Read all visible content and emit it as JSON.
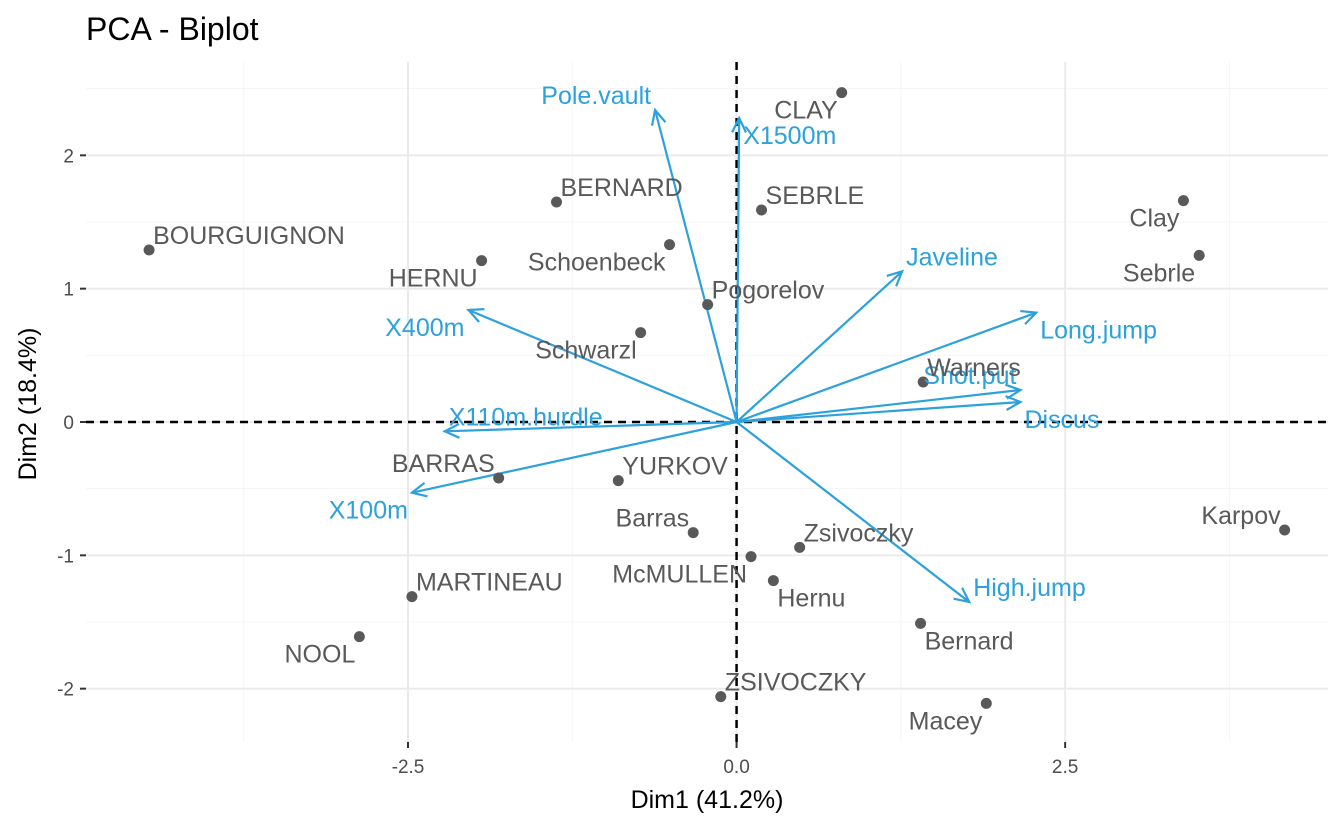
{
  "colors": {
    "individual": "#595959",
    "variable": "#2ca1db",
    "grid_major": "#ebebeb",
    "grid_minor": "#f5f5f5",
    "reference_line": "#000000"
  },
  "chart_data": {
    "type": "scatter",
    "subtype": "pca-biplot",
    "title": "PCA - Biplot",
    "xlabel": "Dim1 (41.2%)",
    "ylabel": "Dim2 (18.4%)",
    "xlim": [
      -4.95,
      4.5
    ],
    "ylim": [
      -2.4,
      2.7
    ],
    "x_ticks": [
      {
        "value": -2.5,
        "label": "-2.5"
      },
      {
        "value": 0.0,
        "label": "0.0"
      },
      {
        "value": 2.5,
        "label": "2.5"
      }
    ],
    "y_ticks": [
      {
        "value": -2,
        "label": "-2"
      },
      {
        "value": -1,
        "label": "-1"
      },
      {
        "value": 0,
        "label": "0"
      },
      {
        "value": 1,
        "label": "1"
      },
      {
        "value": 2,
        "label": "2"
      }
    ],
    "grid": true,
    "reference_lines": {
      "x": 0,
      "y": 0,
      "style": "dashed"
    },
    "individuals": [
      {
        "label": "BOURGUIGNON",
        "x": -4.47,
        "y": 1.29,
        "label_pos": "top-right"
      },
      {
        "label": "BERNARD",
        "x": -1.37,
        "y": 1.65,
        "label_pos": "top-right"
      },
      {
        "label": "CLAY",
        "x": 0.8,
        "y": 2.47,
        "label_pos": "bottom-left"
      },
      {
        "label": "SEBRLE",
        "x": 0.19,
        "y": 1.59,
        "label_pos": "top-right"
      },
      {
        "label": "Clay",
        "x": 3.4,
        "y": 1.66,
        "label_pos": "bottom-left"
      },
      {
        "label": "Sebrle",
        "x": 3.52,
        "y": 1.25,
        "label_pos": "bottom-left"
      },
      {
        "label": "HERNU",
        "x": -1.94,
        "y": 1.21,
        "label_pos": "bottom-left"
      },
      {
        "label": "Schoenbeck",
        "x": -0.51,
        "y": 1.33,
        "label_pos": "bottom-left"
      },
      {
        "label": "Pogorelov",
        "x": -0.22,
        "y": 0.88,
        "label_pos": "top-right"
      },
      {
        "label": "Schwarzl",
        "x": -0.73,
        "y": 0.67,
        "label_pos": "bottom-left"
      },
      {
        "label": "Warners",
        "x": 1.42,
        "y": 0.3,
        "label_pos": "top-right"
      },
      {
        "label": "BARRAS",
        "x": -1.81,
        "y": -0.42,
        "label_pos": "top-left"
      },
      {
        "label": "YURKOV",
        "x": -0.9,
        "y": -0.44,
        "label_pos": "top-right"
      },
      {
        "label": "Barras",
        "x": -0.33,
        "y": -0.83,
        "label_pos": "top-left"
      },
      {
        "label": "Karpov",
        "x": 4.17,
        "y": -0.81,
        "label_pos": "top-left"
      },
      {
        "label": "Zsivoczky",
        "x": 0.48,
        "y": -0.94,
        "label_pos": "top-right"
      },
      {
        "label": "McMULLEN",
        "x": 0.11,
        "y": -1.01,
        "label_pos": "bottom-left"
      },
      {
        "label": "Hernu",
        "x": 0.28,
        "y": -1.19,
        "label_pos": "bottom-right"
      },
      {
        "label": "MARTINEAU",
        "x": -2.47,
        "y": -1.31,
        "label_pos": "top-right"
      },
      {
        "label": "Bernard",
        "x": 1.4,
        "y": -1.51,
        "label_pos": "bottom-right"
      },
      {
        "label": "NOOL",
        "x": -2.87,
        "y": -1.61,
        "label_pos": "bottom-left"
      },
      {
        "label": "ZSIVOCZKY",
        "x": -0.12,
        "y": -2.06,
        "label_pos": "top-right"
      },
      {
        "label": "Macey",
        "x": 1.9,
        "y": -2.11,
        "label_pos": "bottom-left"
      }
    ],
    "variables": [
      {
        "label": "Pole.vault",
        "x": -0.62,
        "y": 2.34,
        "label_pos": "top-left"
      },
      {
        "label": "X1500m",
        "x": 0.02,
        "y": 2.28,
        "label_pos": "bottom-right"
      },
      {
        "label": "Javeline",
        "x": 1.26,
        "y": 1.13,
        "label_pos": "top-right"
      },
      {
        "label": "Long.jump",
        "x": 2.28,
        "y": 0.82,
        "label_pos": "bottom-right"
      },
      {
        "label": "Shot.put",
        "x": 2.16,
        "y": 0.24,
        "label_pos": "top-left"
      },
      {
        "label": "Discus",
        "x": 2.16,
        "y": 0.15,
        "label_pos": "bottom-right"
      },
      {
        "label": "X400m",
        "x": -2.04,
        "y": 0.84,
        "label_pos": "bottom-left"
      },
      {
        "label": "X110m.hurdle",
        "x": -2.22,
        "y": -0.07,
        "label_pos": "top-right"
      },
      {
        "label": "X100m",
        "x": -2.47,
        "y": -0.53,
        "label_pos": "bottom-left"
      },
      {
        "label": "High.jump",
        "x": 1.77,
        "y": -1.35,
        "label_pos": "top-right"
      }
    ]
  }
}
